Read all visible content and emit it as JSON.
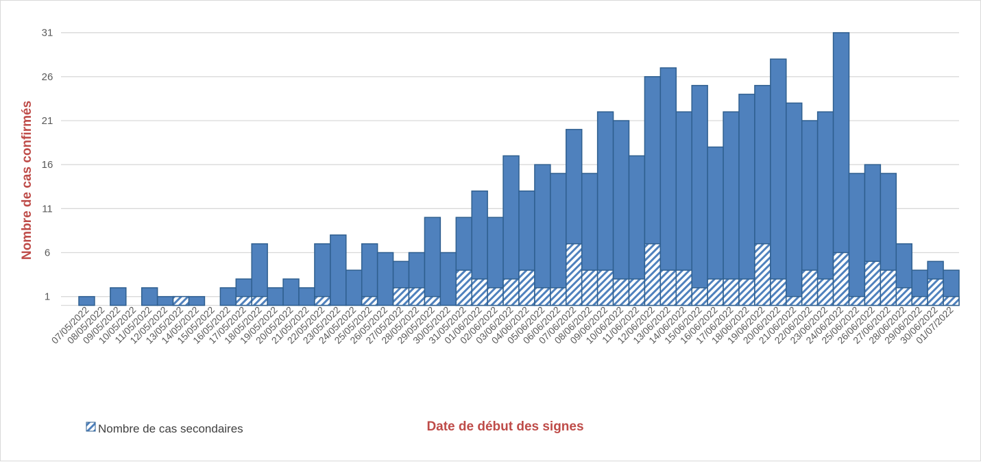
{
  "chart_data": {
    "type": "bar",
    "stacked_overlay": true,
    "ylabel": "Nombre de cas confirmés",
    "xlabel": "Date de début des signes",
    "yticks": [
      1,
      6,
      11,
      16,
      21,
      26,
      31
    ],
    "ylim": [
      0,
      31
    ],
    "grid": true,
    "legend_placement": "bottom-left",
    "colors": {
      "bar": "#4f81bd",
      "bar_edge": "#2f5f8f",
      "grid": "#d9d9d9",
      "title": "#be4b48"
    },
    "categories": [
      "07/05/2022",
      "08/05/2022",
      "09/05/2022",
      "10/05/2022",
      "11/05/2022",
      "12/05/2022",
      "13/05/2022",
      "14/05/2022",
      "15/05/2022",
      "16/05/2022",
      "17/05/2022",
      "18/05/2022",
      "19/05/2022",
      "20/05/2022",
      "21/05/2022",
      "22/05/2022",
      "23/05/2022",
      "24/05/2022",
      "25/05/2022",
      "26/05/2022",
      "27/05/2022",
      "28/05/2022",
      "29/05/2022",
      "30/05/2022",
      "31/05/2022",
      "01/06/2022",
      "02/06/2022",
      "03/06/2022",
      "04/06/2022",
      "05/06/2022",
      "06/06/2022",
      "07/06/2022",
      "08/06/2022",
      "09/06/2022",
      "10/06/2022",
      "11/06/2022",
      "12/06/2022",
      "13/06/2022",
      "14/06/2022",
      "15/06/2022",
      "16/06/2022",
      "17/06/2022",
      "18/06/2022",
      "19/06/2022",
      "20/06/2022",
      "21/06/2022",
      "22/06/2022",
      "23/06/2022",
      "24/06/2022",
      "25/06/2022",
      "26/06/2022",
      "27/06/2022",
      "28/06/2022",
      "29/06/2022",
      "30/06/2022",
      "01/07/2022"
    ],
    "series": [
      {
        "values": [
          1,
          0,
          2,
          0,
          2,
          1,
          1,
          1,
          0,
          2,
          3,
          7,
          2,
          3,
          2,
          7,
          8,
          4,
          7,
          6,
          5,
          6,
          10,
          6,
          10,
          13,
          10,
          17,
          13,
          16,
          15,
          20,
          15,
          22,
          21,
          17,
          26,
          27,
          22,
          25,
          18,
          22,
          24,
          25,
          28,
          23,
          21,
          22,
          31,
          15,
          16,
          15,
          7,
          4,
          5,
          4
        ]
      },
      {
        "name": "Nombre de cas secondaires",
        "values": [
          0,
          0,
          0,
          0,
          0,
          0,
          1,
          0,
          0,
          0,
          1,
          1,
          0,
          0,
          0,
          1,
          0,
          0,
          1,
          0,
          2,
          2,
          1,
          0,
          4,
          3,
          2,
          3,
          4,
          2,
          2,
          7,
          4,
          4,
          3,
          3,
          7,
          4,
          4,
          2,
          3,
          3,
          3,
          7,
          3,
          1,
          4,
          3,
          6,
          1,
          5,
          4,
          2,
          1,
          3,
          1
        ]
      }
    ]
  }
}
